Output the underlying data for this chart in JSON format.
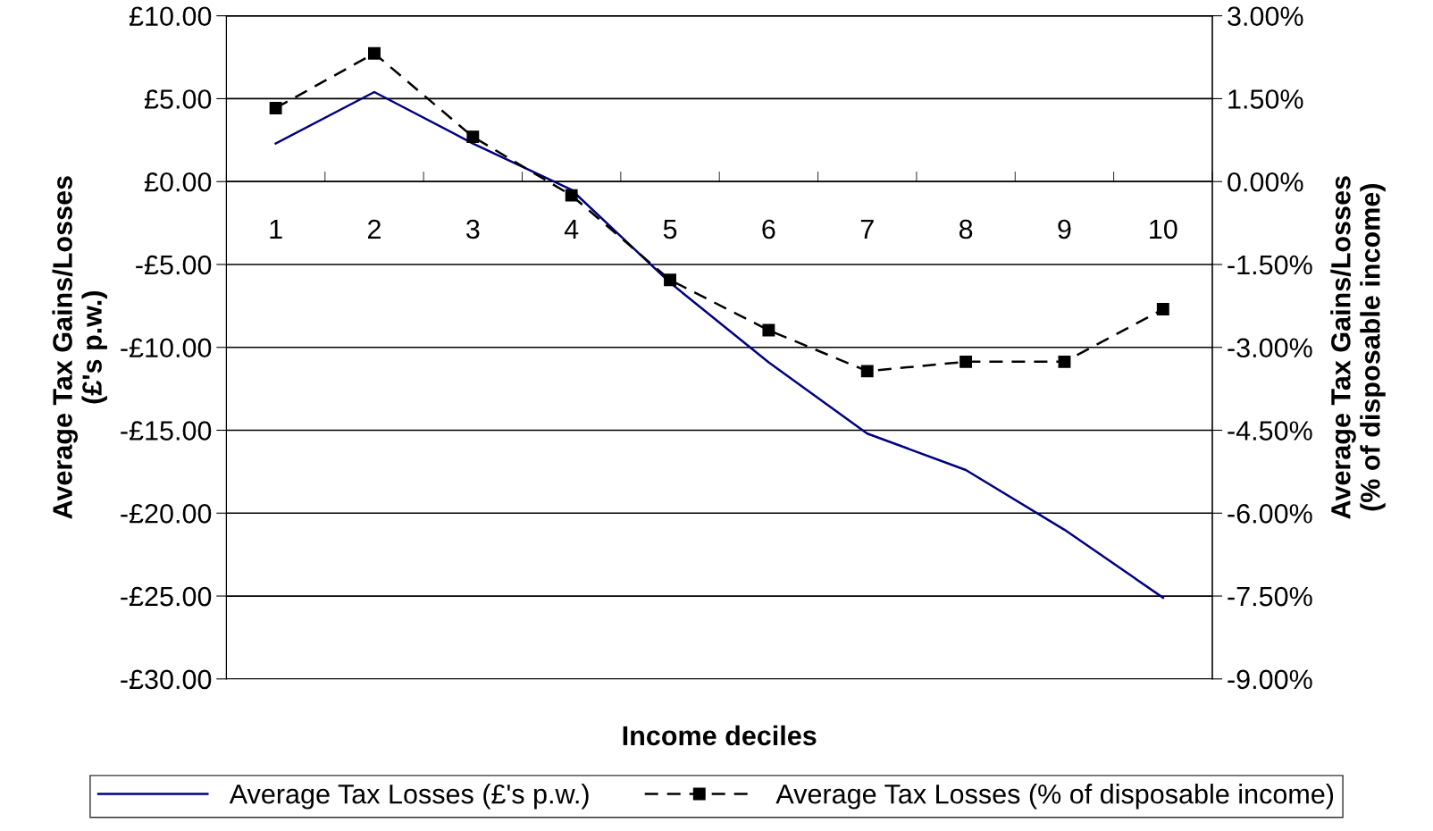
{
  "chart_data": {
    "type": "line",
    "xlabel": "Income deciles",
    "ylabel": "Average Tax Gains/Losses\n(£'s p.w.)",
    "y2label": "Average Tax Gains/Losses\n(% of disposable income)",
    "categories": [
      "1",
      "2",
      "3",
      "4",
      "5",
      "6",
      "7",
      "8",
      "9",
      "10"
    ],
    "series": [
      {
        "name": "Average Tax Losses (£'s p.w.)",
        "color": "#000080",
        "marker": "none",
        "line_style": "solid",
        "values": [
          2.3,
          5.4,
          2.3,
          -0.5,
          -6.1,
          -10.9,
          -15.2,
          -17.4,
          -21.0,
          -25.1
        ]
      },
      {
        "name": "Average Tax Losses (% of disposable income)",
        "color": "#000000",
        "marker": "square",
        "line_style": "dashed",
        "axis": "y2",
        "values": [
          1.33,
          2.32,
          0.81,
          -0.25,
          -1.78,
          -2.69,
          -3.43,
          -3.26,
          -3.26,
          -2.31
        ]
      }
    ],
    "ylim": [
      -30,
      10
    ],
    "yticks": [
      {
        "value": -30,
        "label": "-£30.00"
      },
      {
        "value": -25,
        "label": "-£25.00"
      },
      {
        "value": -20,
        "label": "-£20.00"
      },
      {
        "value": -15,
        "label": "-£15.00"
      },
      {
        "value": -10,
        "label": "-£10.00"
      },
      {
        "value": -5,
        "label": "-£5.00"
      },
      {
        "value": 0,
        "label": "£0.00"
      },
      {
        "value": 5,
        "label": "£5.00"
      },
      {
        "value": 10,
        "label": "£10.00"
      }
    ],
    "y2lim": [
      -9,
      3
    ],
    "y2ticks": [
      {
        "value": -9,
        "label": "-9.00%"
      },
      {
        "value": -7.5,
        "label": "-7.50%"
      },
      {
        "value": -6,
        "label": "-6.00%"
      },
      {
        "value": -4.5,
        "label": "-4.50%"
      },
      {
        "value": -3,
        "label": "-3.00%"
      },
      {
        "value": -1.5,
        "label": "-1.50%"
      },
      {
        "value": 0,
        "label": "0.00%"
      },
      {
        "value": 1.5,
        "label": "1.50%"
      },
      {
        "value": 3,
        "label": "3.00%"
      }
    ],
    "grid": "y",
    "legend": "bottom"
  }
}
